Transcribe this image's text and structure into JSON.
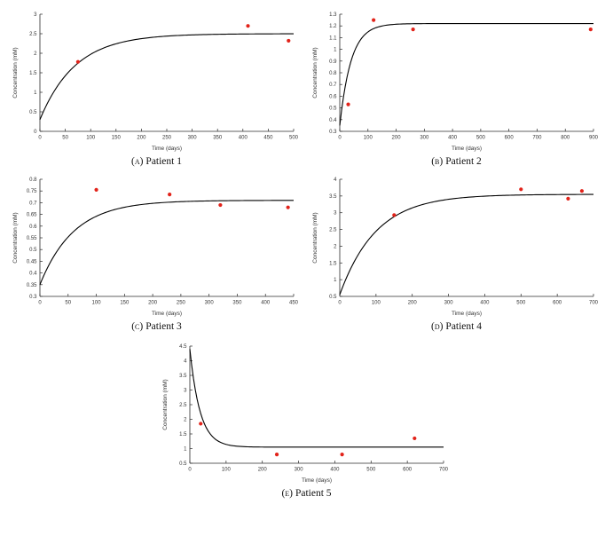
{
  "page": {
    "background": "#ffffff"
  },
  "style": {
    "curve_color": "#000000",
    "point_color": "#e2231a",
    "axis_color": "#2b2b2b",
    "tick_label_color": "#333333"
  },
  "chart_data": [
    {
      "type": "line+scatter",
      "caption_label": "(a)",
      "caption_text": "Patient 1",
      "xlabel": "Time (days)",
      "ylabel": "Concentration (mM)",
      "xlim": [
        0,
        500
      ],
      "xtick_step": 50,
      "ylim": [
        0,
        3
      ],
      "ytick_step": 0.5,
      "grid": false,
      "fit_curve": {
        "model": "exponential-saturation",
        "y0": 0.3,
        "yinf": 2.5,
        "tau": 70
      },
      "scatter_points": [
        [
          75,
          1.78
        ],
        [
          410,
          2.7
        ],
        [
          490,
          2.32
        ]
      ]
    },
    {
      "type": "line+scatter",
      "caption_label": "(b)",
      "caption_text": "Patient 2",
      "xlabel": "Time (days)",
      "ylabel": "Concentration (mM)",
      "xlim": [
        0,
        900
      ],
      "xtick_step": 100,
      "ylim": [
        0.3,
        1.3
      ],
      "ytick_step": 0.1,
      "grid": false,
      "fit_curve": {
        "model": "exponential-saturation",
        "y0": 0.35,
        "yinf": 1.22,
        "tau": 40
      },
      "scatter_points": [
        [
          30,
          0.53
        ],
        [
          120,
          1.25
        ],
        [
          260,
          1.17
        ],
        [
          890,
          1.17
        ]
      ]
    },
    {
      "type": "line+scatter",
      "caption_label": "(c)",
      "caption_text": "Patient 3",
      "xlabel": "Time (days)",
      "ylabel": "Concentration (mM)",
      "xlim": [
        0,
        450
      ],
      "xtick_step": 50,
      "ylim": [
        0.3,
        0.8
      ],
      "ytick_step": 0.05,
      "grid": false,
      "fit_curve": {
        "model": "exponential-saturation",
        "y0": 0.35,
        "yinf": 0.71,
        "tau": 60
      },
      "scatter_points": [
        [
          100,
          0.755
        ],
        [
          230,
          0.735
        ],
        [
          320,
          0.69
        ],
        [
          440,
          0.68
        ]
      ]
    },
    {
      "type": "line+scatter",
      "caption_label": "(d)",
      "caption_text": "Patient 4",
      "xlabel": "Time (days)",
      "ylabel": "Concentration (mM)",
      "xlim": [
        0,
        700
      ],
      "xtick_step": 100,
      "ylim": [
        0.5,
        4
      ],
      "ytick_step": 0.5,
      "grid": false,
      "fit_curve": {
        "model": "exponential-saturation",
        "y0": 0.55,
        "yinf": 3.55,
        "tau": 100
      },
      "scatter_points": [
        [
          150,
          2.93
        ],
        [
          500,
          3.7
        ],
        [
          630,
          3.42
        ],
        [
          668,
          3.65
        ]
      ]
    },
    {
      "type": "line+scatter",
      "caption_label": "(e)",
      "caption_text": "Patient 5",
      "xlabel": "Time (days)",
      "ylabel": "Concentration (mM)",
      "xlim": [
        0,
        700
      ],
      "xtick_step": 100,
      "ylim": [
        0.5,
        4.5
      ],
      "ytick_step": 0.5,
      "grid": false,
      "fit_curve": {
        "model": "exponential-saturation",
        "y0": 4.4,
        "yinf": 1.05,
        "tau": 28
      },
      "scatter_points": [
        [
          30,
          1.85
        ],
        [
          240,
          0.8
        ],
        [
          420,
          0.8
        ],
        [
          620,
          1.35
        ]
      ]
    }
  ]
}
